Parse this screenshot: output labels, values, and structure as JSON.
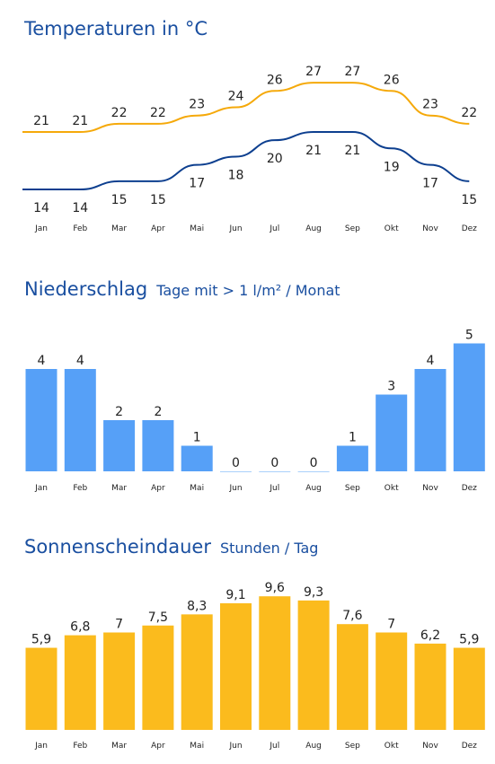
{
  "chart_data": [
    {
      "type": "line",
      "title": "Temperaturen in °C",
      "categories": [
        "Jan",
        "Feb",
        "Mar",
        "Apr",
        "Mai",
        "Jun",
        "Jul",
        "Aug",
        "Sep",
        "Okt",
        "Nov",
        "Dez"
      ],
      "series": [
        {
          "color": "#f5a90a",
          "values": [
            21,
            21,
            22,
            22,
            23,
            24,
            26,
            27,
            27,
            26,
            23,
            22
          ]
        },
        {
          "color": "#0d3f8f",
          "values": [
            14,
            14,
            15,
            15,
            17,
            18,
            20,
            21,
            21,
            19,
            17,
            15
          ]
        }
      ]
    },
    {
      "type": "bar",
      "title": "Niederschlag",
      "subtitle": "Tage mit > 1 l/m² / Monat",
      "categories": [
        "Jan",
        "Feb",
        "Mar",
        "Apr",
        "Mai",
        "Jun",
        "Jul",
        "Aug",
        "Sep",
        "Okt",
        "Nov",
        "Dez"
      ],
      "values": [
        4,
        4,
        2,
        2,
        1,
        0,
        0,
        0,
        1,
        3,
        4,
        5
      ],
      "labels": [
        "4",
        "4",
        "2",
        "2",
        "1",
        "0",
        "0",
        "0",
        "1",
        "3",
        "4",
        "5"
      ],
      "color": "#56a0f7"
    },
    {
      "type": "bar",
      "title": "Sonnenscheindauer",
      "subtitle": "Stunden / Tag",
      "categories": [
        "Jan",
        "Feb",
        "Mar",
        "Apr",
        "Mai",
        "Jun",
        "Jul",
        "Aug",
        "Sep",
        "Okt",
        "Nov",
        "Dez"
      ],
      "values": [
        5.9,
        6.8,
        7,
        7.5,
        8.3,
        9.1,
        9.6,
        9.3,
        7.6,
        7,
        6.2,
        5.9
      ],
      "labels": [
        "5,9",
        "6,8",
        "7",
        "7,5",
        "8,3",
        "9,1",
        "9,6",
        "9,3",
        "7,6",
        "7",
        "6,2",
        "5,9"
      ],
      "color": "#fbbb1d"
    }
  ]
}
